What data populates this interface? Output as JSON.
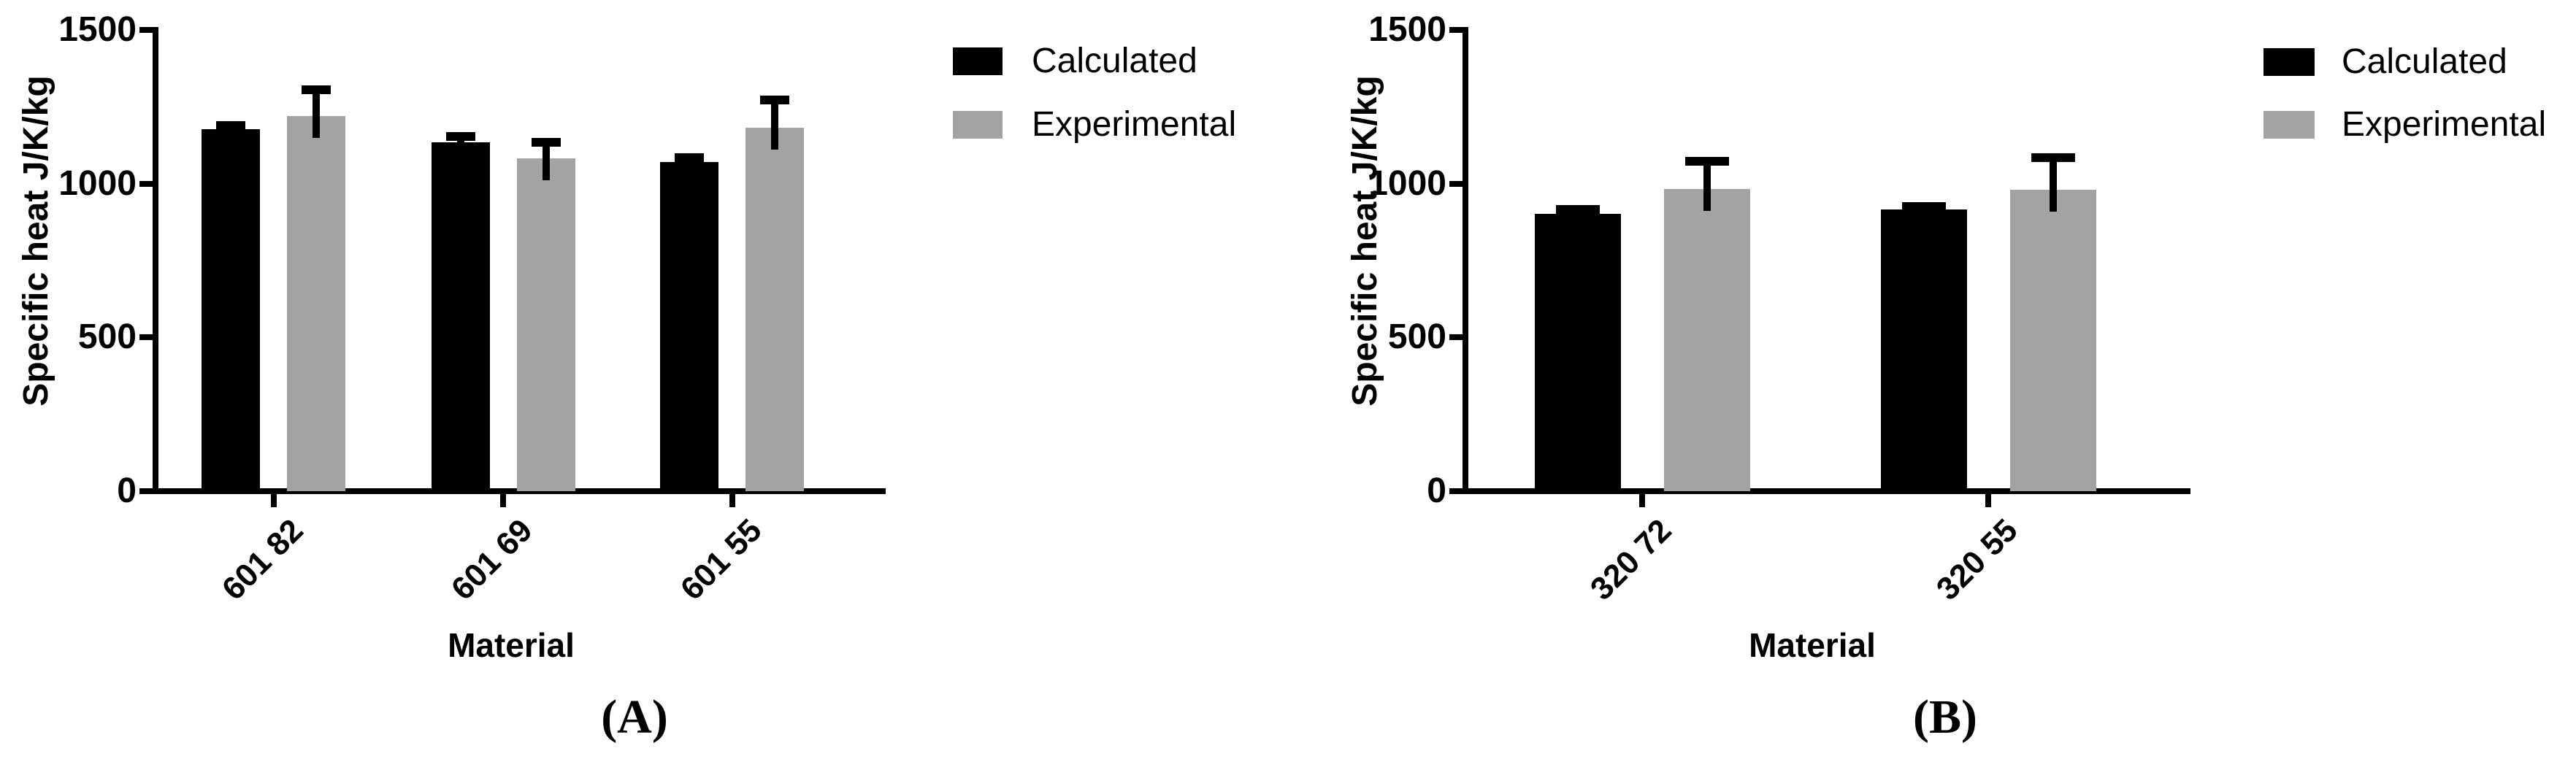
{
  "figure": {
    "background": "#ffffff",
    "colors": {
      "calculated": "#000000",
      "experimental": "#a3a3a3",
      "axis": "#000000"
    }
  },
  "chart_data": [
    {
      "type": "bar",
      "panel": "A",
      "caption": "(A)",
      "title": "",
      "xlabel": "Material",
      "ylabel": "Specific heat J/K/kg",
      "ylim": [
        0,
        1500
      ],
      "yticks": [
        0,
        500,
        1000,
        1500
      ],
      "grid": false,
      "legend_position": "right",
      "legend": [
        "Calculated",
        "Experimental"
      ],
      "categories": [
        "601 82",
        "601 69",
        "601 55"
      ],
      "series": [
        {
          "name": "Calculated",
          "color": "#000000",
          "values": [
            1177,
            1135,
            1070
          ],
          "errors_plus": [
            12,
            19,
            15
          ]
        },
        {
          "name": "Experimental",
          "color": "#a3a3a3",
          "values": [
            1220,
            1082,
            1182
          ],
          "errors_plus": [
            85,
            53,
            90
          ]
        }
      ]
    },
    {
      "type": "bar",
      "panel": "B",
      "caption": "(B)",
      "title": "",
      "xlabel": "Material",
      "ylabel": "Specific heat J/K/kg",
      "ylim": [
        0,
        1500
      ],
      "yticks": [
        0,
        500,
        1000,
        1500
      ],
      "grid": false,
      "legend_position": "right",
      "legend": [
        "Calculated",
        "Experimental"
      ],
      "categories": [
        "320 72",
        "320 55"
      ],
      "series": [
        {
          "name": "Calculated",
          "color": "#000000",
          "values": [
            902,
            916
          ],
          "errors_plus": [
            14,
            10
          ]
        },
        {
          "name": "Experimental",
          "color": "#a3a3a3",
          "values": [
            983,
            980
          ],
          "errors_plus": [
            90,
            105
          ]
        }
      ]
    }
  ]
}
